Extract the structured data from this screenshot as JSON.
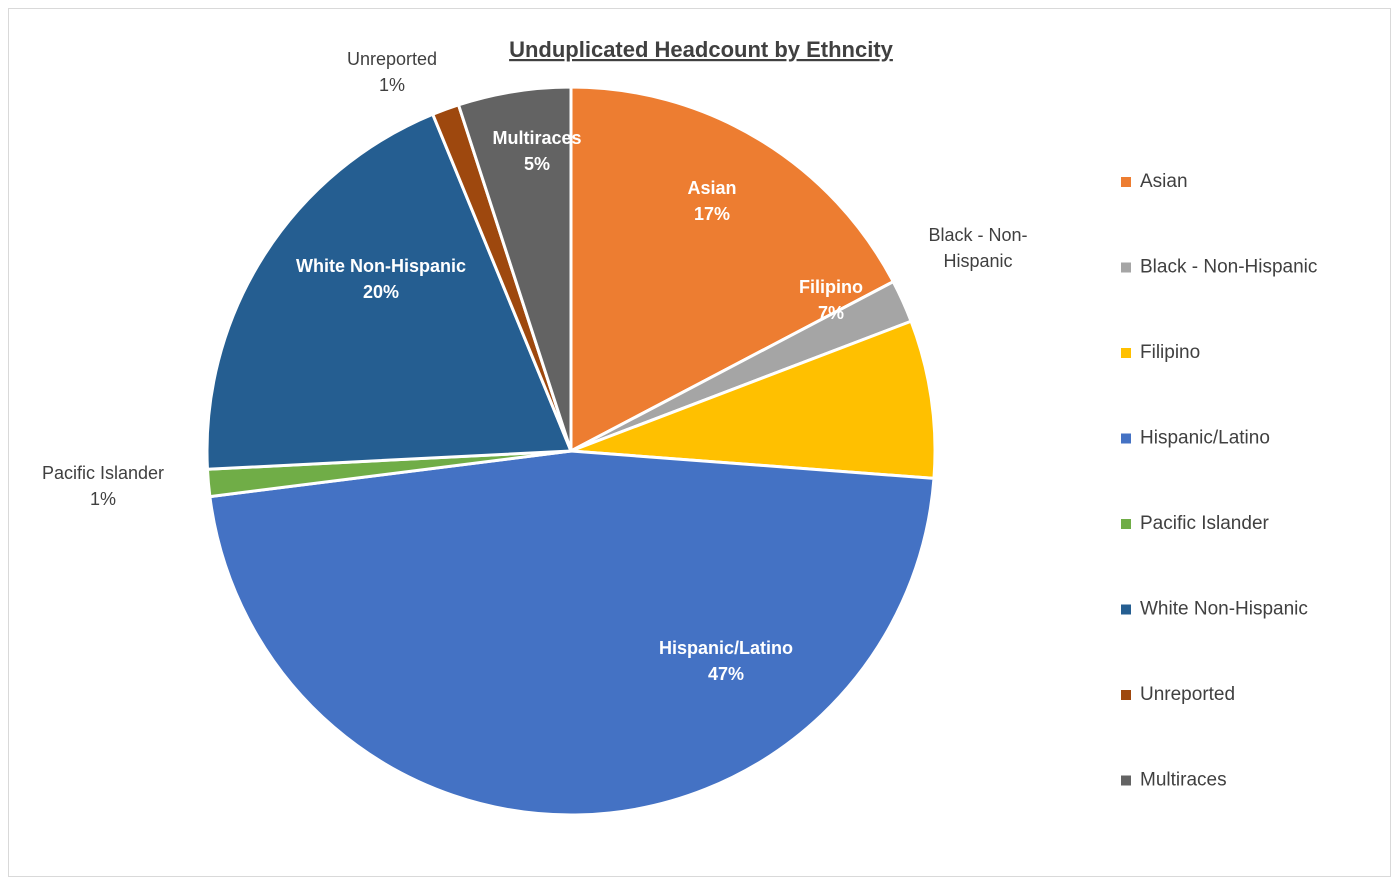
{
  "chart_data": {
    "type": "pie",
    "title": "Unduplicated Headcount by Ethncity",
    "legend_position": "right",
    "start_angle_deg": 0,
    "direction": "clockwise",
    "slices": [
      {
        "name": "Asian",
        "value": 17.3,
        "label_name": [
          "Asian"
        ],
        "label_pct": "17%",
        "label_style": "inside",
        "color": "#ED7D31"
      },
      {
        "name": "Black - Non-Hispanic",
        "value": 1.9,
        "label_name": [
          "Black - Non-",
          "Hispanic"
        ],
        "label_pct": "",
        "label_style": "outside",
        "color": "#A5A5A5"
      },
      {
        "name": "Filipino",
        "value": 7.0,
        "label_name": [
          "Filipino"
        ],
        "label_pct": "7%",
        "label_style": "inside",
        "color": "#FFC000"
      },
      {
        "name": "Hispanic/Latino",
        "value": 46.8,
        "label_name": [
          "Hispanic/Latino"
        ],
        "label_pct": "47%",
        "label_style": "inside",
        "color": "#4472C4"
      },
      {
        "name": "Pacific Islander",
        "value": 1.2,
        "label_name": [
          "Pacific Islander"
        ],
        "label_pct": "1%",
        "label_style": "outside",
        "color": "#70AD47"
      },
      {
        "name": "White Non-Hispanic",
        "value": 19.6,
        "label_name": [
          "White Non-Hispanic"
        ],
        "label_pct": "20%",
        "label_style": "inside",
        "color": "#255E91"
      },
      {
        "name": "Unreported",
        "value": 1.2,
        "label_name": [
          "Unreported"
        ],
        "label_pct": "1%",
        "label_style": "outside",
        "color": "#9E480E"
      },
      {
        "name": "Multiraces",
        "value": 5.0,
        "label_name": [
          "Multiraces"
        ],
        "label_pct": "5%",
        "label_style": "inside",
        "color": "#636363"
      }
    ]
  }
}
